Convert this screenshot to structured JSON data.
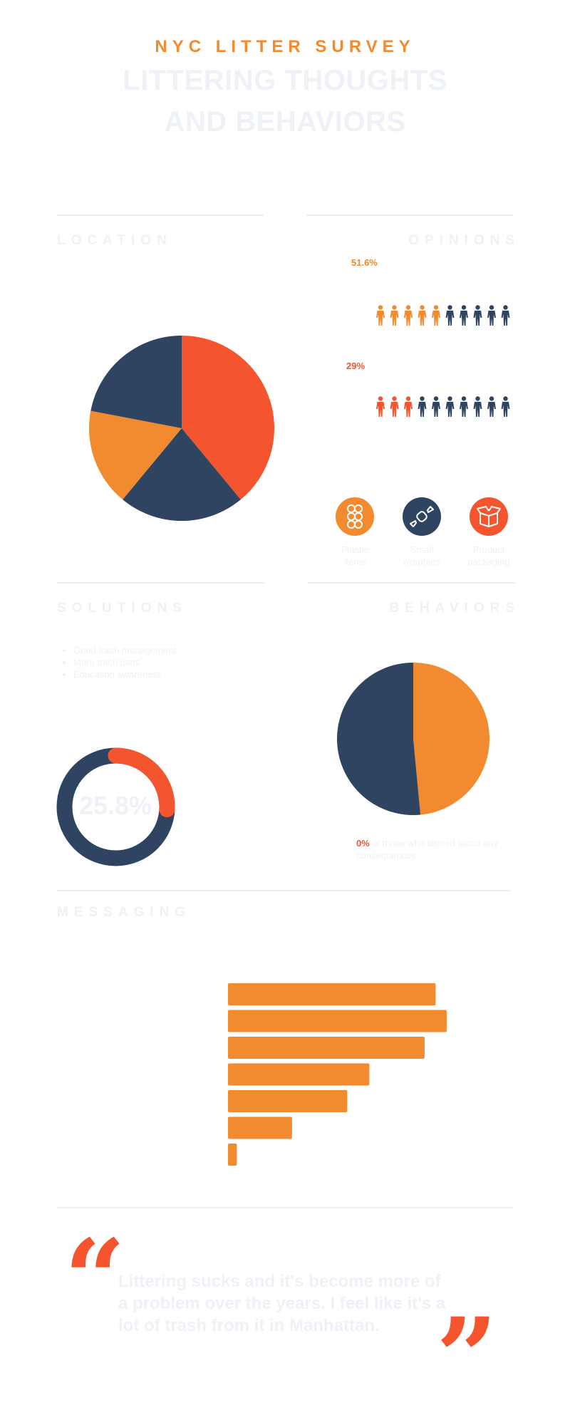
{
  "header": {
    "kicker": "NYC LITTER SURVEY",
    "title_line1": "LITTERING THOUGHTS",
    "title_line2": "AND BEHAVIORS"
  },
  "sections": {
    "location": "LOCATION",
    "opinions": "OPINIONS",
    "solutions": "SOLUTIONS",
    "behaviors": "BEHAVIORS",
    "messaging": "MESSAGING"
  },
  "opinions": {
    "stat1": {
      "label": "51.6%",
      "filled": 5,
      "total": 10,
      "color": "#f28a30"
    },
    "stat2": {
      "label": "29%",
      "filled": 3,
      "total": 10,
      "color": "#f4542e"
    },
    "figure_base_color": "#2f4460",
    "items": [
      {
        "label_line1": "Plastic",
        "label_line2": "items",
        "icon": "plastic-rings-icon",
        "color": "#f28a30"
      },
      {
        "label_line1": "Small",
        "label_line2": "wrappers",
        "icon": "candy-wrapper-icon",
        "color": "#2f4460"
      },
      {
        "label_line1": "Product",
        "label_line2": "packaging",
        "icon": "box-packaging-icon",
        "color": "#f4542e"
      }
    ]
  },
  "solutions": {
    "bullets": [
      "Good trash management",
      "More trash cans",
      "Education awareness"
    ],
    "donut_label": "25.8%"
  },
  "behaviors": {
    "note_pct": "0%",
    "note_text": " of those who littered faced any consequences"
  },
  "quote": {
    "text": "Littering sucks and it's become more of a problem over the years. I feel like it's a lot of trash from it in Manhattan.",
    "open_mark": "“",
    "close_mark": "”"
  },
  "chart_data": [
    {
      "type": "pie",
      "chart": "location",
      "values": [
        39,
        22,
        17,
        22
      ],
      "colors": [
        "#f4542e",
        "#2f4460",
        "#f28a30",
        "#2f4460"
      ]
    },
    {
      "type": "pie",
      "chart": "behaviors",
      "values": [
        48.5,
        51.5
      ],
      "colors": [
        "#f28a30",
        "#2f4460"
      ]
    },
    {
      "type": "pie",
      "chart": "solutions-donut",
      "values": [
        25.8,
        74.2
      ],
      "colors": [
        "#f4542e",
        "#2f4460"
      ]
    },
    {
      "type": "bar",
      "chart": "messaging",
      "orientation": "horizontal",
      "categories": [
        "",
        "",
        "",
        "",
        "",
        "",
        ""
      ],
      "values": [
        94,
        99,
        89,
        64,
        54,
        29,
        4
      ],
      "xlim": [
        0,
        100
      ],
      "color": "#f28a30"
    }
  ]
}
